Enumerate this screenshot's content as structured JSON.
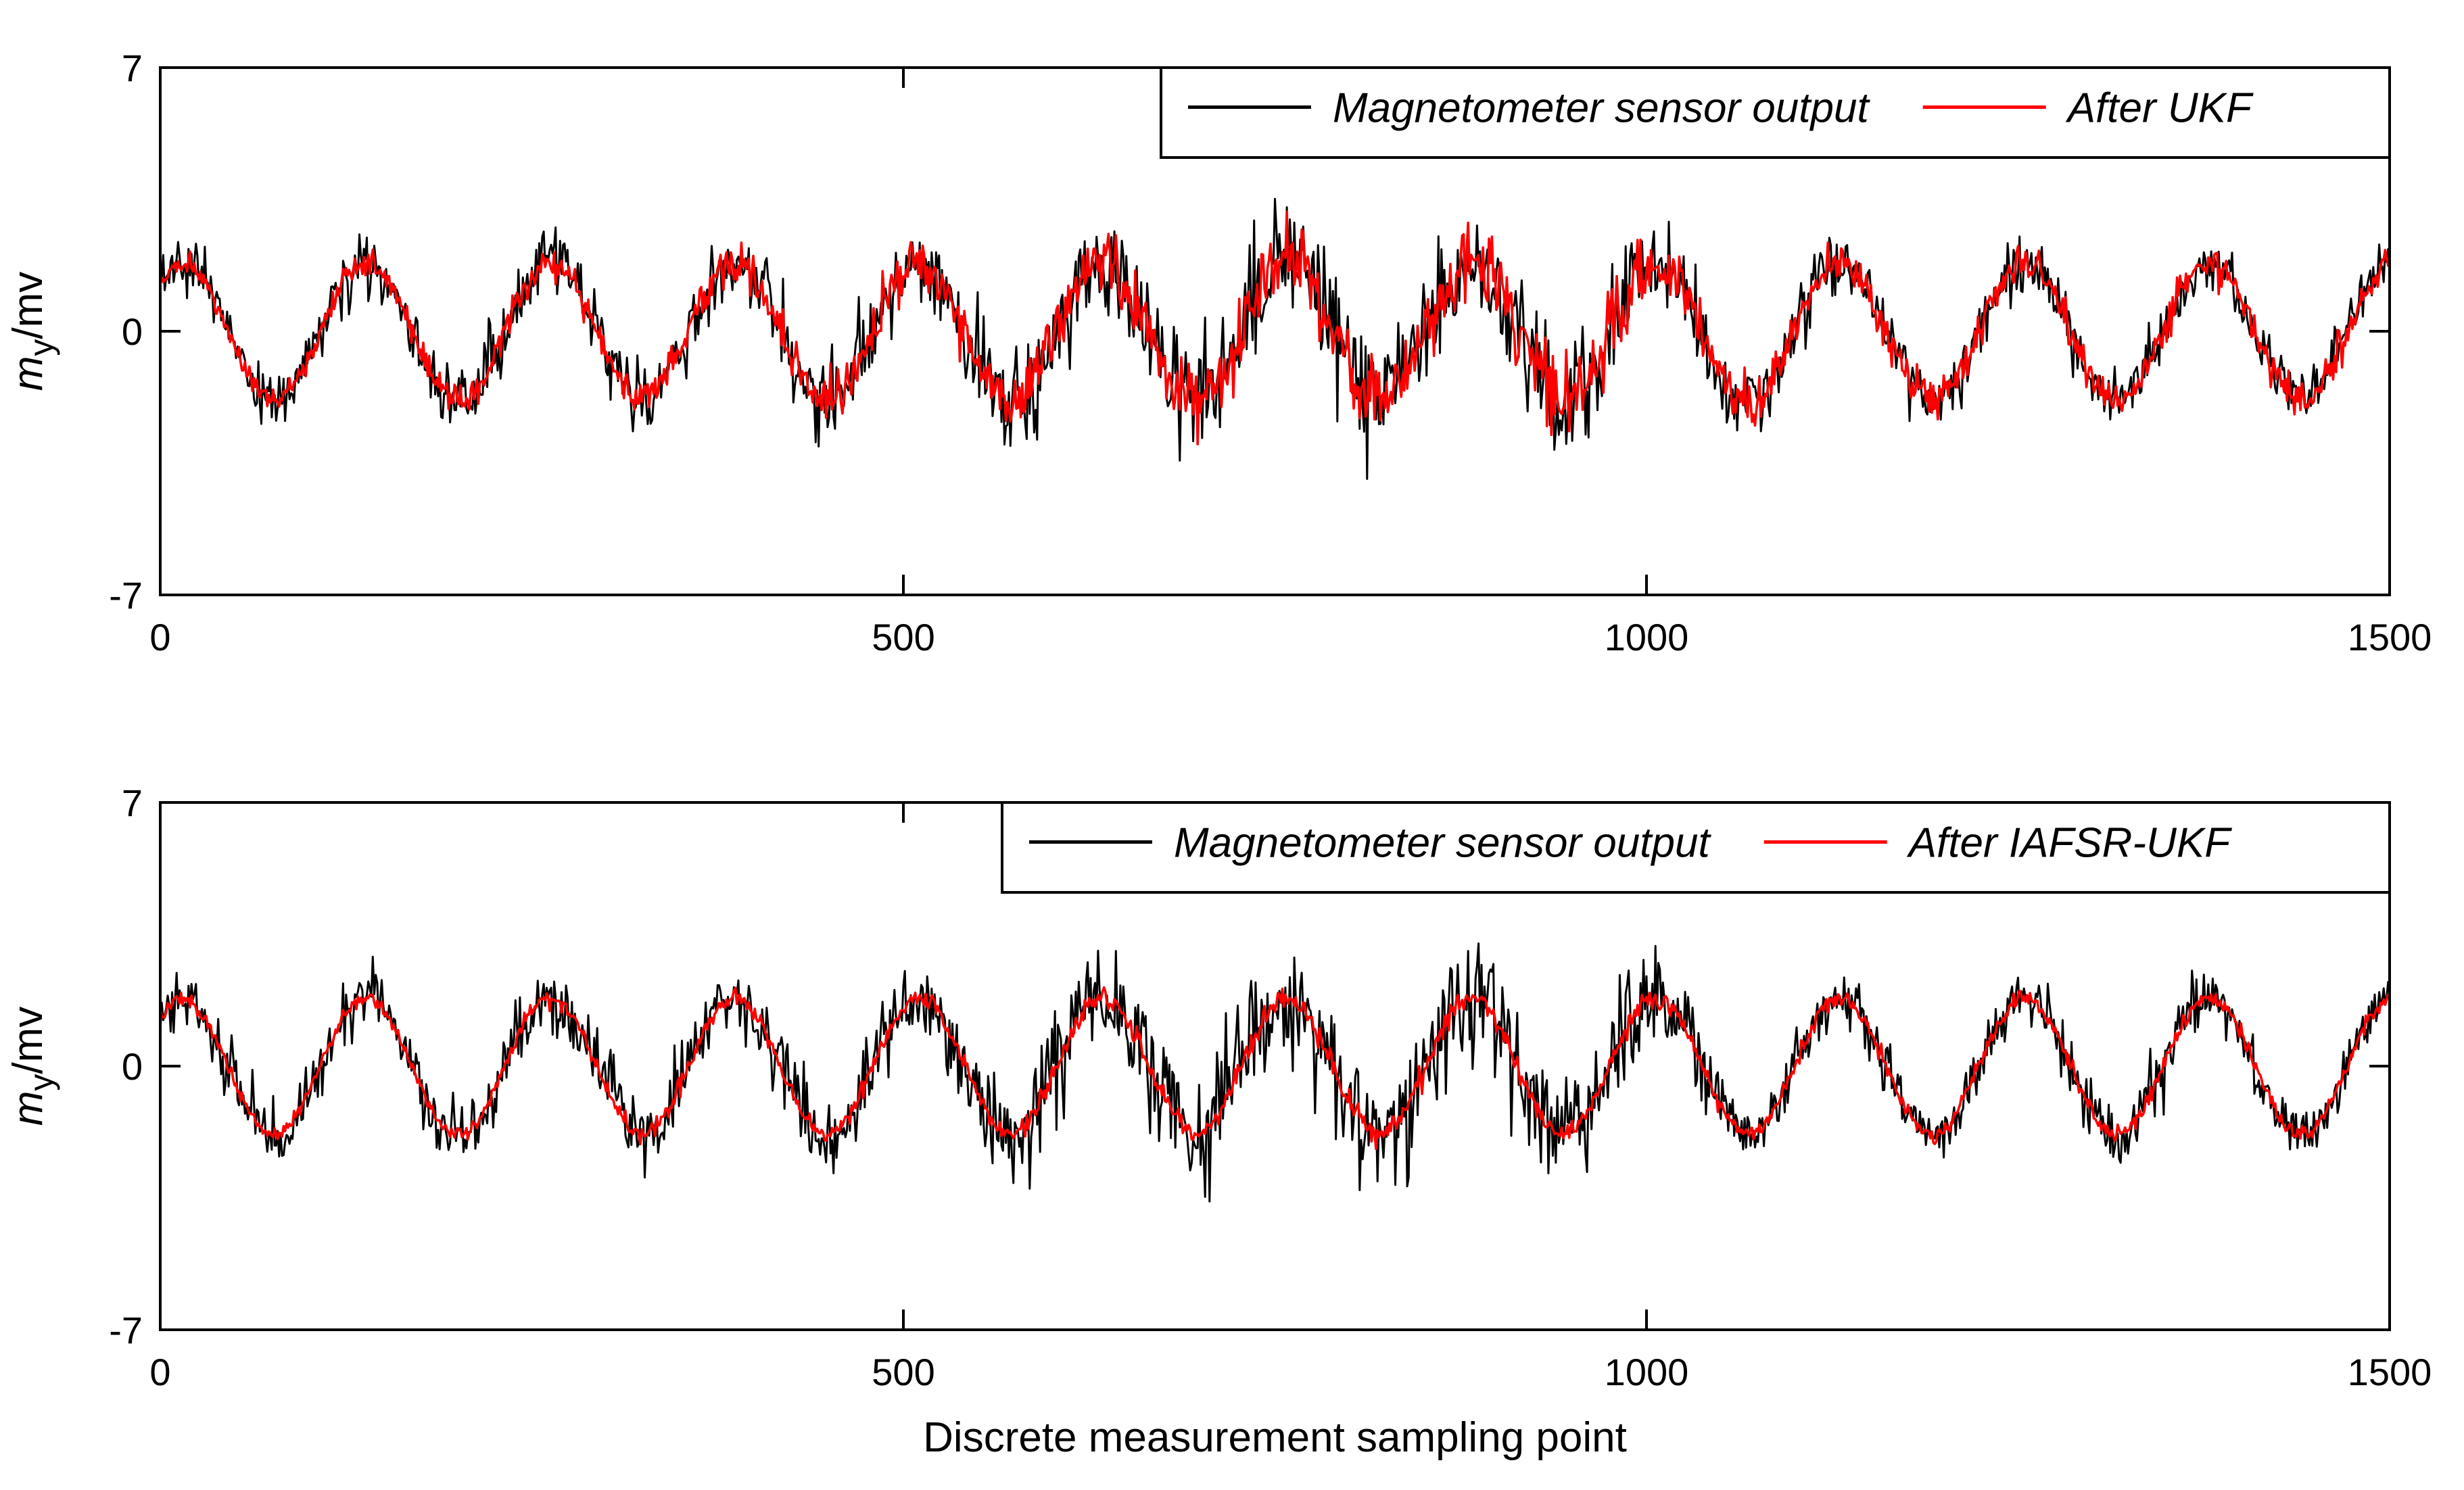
{
  "chart_data": [
    {
      "type": "line",
      "xlabel": "",
      "ylabel_main": "m",
      "ylabel_sub": "y",
      "ylabel_unit": "/mv",
      "xlim": [
        0,
        1500
      ],
      "ylim": [
        -7,
        7
      ],
      "xticks": [
        0,
        500,
        1000,
        1500
      ],
      "xtick_labels": [
        "0",
        "500",
        "1000",
        "1500"
      ],
      "yticks": [
        -7,
        0,
        7
      ],
      "ytick_labels": [
        "-7",
        "0",
        "7"
      ],
      "grid": false,
      "legend_position": "top-right",
      "signal": {
        "n": 1500,
        "period": 124,
        "amplitude": 1.8,
        "phase_deg": 48
      },
      "series": [
        {
          "name": "Magnetometer sensor output",
          "color": "#000000",
          "noise_profile": [
            [
              0,
              0.35
            ],
            [
              500,
              0.55
            ],
            [
              600,
              0.75
            ],
            [
              800,
              0.85
            ],
            [
              1000,
              0.65
            ],
            [
              1100,
              0.4
            ],
            [
              1500,
              0.35
            ]
          ]
        },
        {
          "name": "After UKF",
          "color": "#ff0000",
          "noise_profile": [
            [
              0,
              0.12
            ],
            [
              500,
              0.35
            ],
            [
              700,
              0.5
            ],
            [
              900,
              0.55
            ],
            [
              1000,
              0.45
            ],
            [
              1100,
              0.28
            ],
            [
              1500,
              0.22
            ]
          ]
        }
      ]
    },
    {
      "type": "line",
      "xlabel": "Discrete measurement sampling point",
      "ylabel_main": "m",
      "ylabel_sub": "y",
      "ylabel_unit": "/mv",
      "xlim": [
        0,
        1500
      ],
      "ylim": [
        -7,
        7
      ],
      "xticks": [
        0,
        500,
        1000,
        1500
      ],
      "xtick_labels": [
        "0",
        "500",
        "1000",
        "1500"
      ],
      "yticks": [
        -7,
        0,
        7
      ],
      "ytick_labels": [
        "-7",
        "0",
        "7"
      ],
      "grid": false,
      "legend_position": "top-right",
      "signal": {
        "n": 1500,
        "period": 124,
        "amplitude": 1.8,
        "phase_deg": 48
      },
      "series": [
        {
          "name": "Magnetometer sensor output",
          "color": "#000000",
          "noise_profile": [
            [
              0,
              0.35
            ],
            [
              500,
              0.55
            ],
            [
              600,
              0.75
            ],
            [
              800,
              0.85
            ],
            [
              1000,
              0.65
            ],
            [
              1100,
              0.4
            ],
            [
              1500,
              0.35
            ]
          ]
        },
        {
          "name": "After IAFSR-UKF",
          "color": "#ff0000",
          "noise_profile": [
            [
              0,
              0.08
            ],
            [
              500,
              0.12
            ],
            [
              800,
              0.16
            ],
            [
              1000,
              0.12
            ],
            [
              1500,
              0.1
            ]
          ]
        }
      ]
    }
  ]
}
